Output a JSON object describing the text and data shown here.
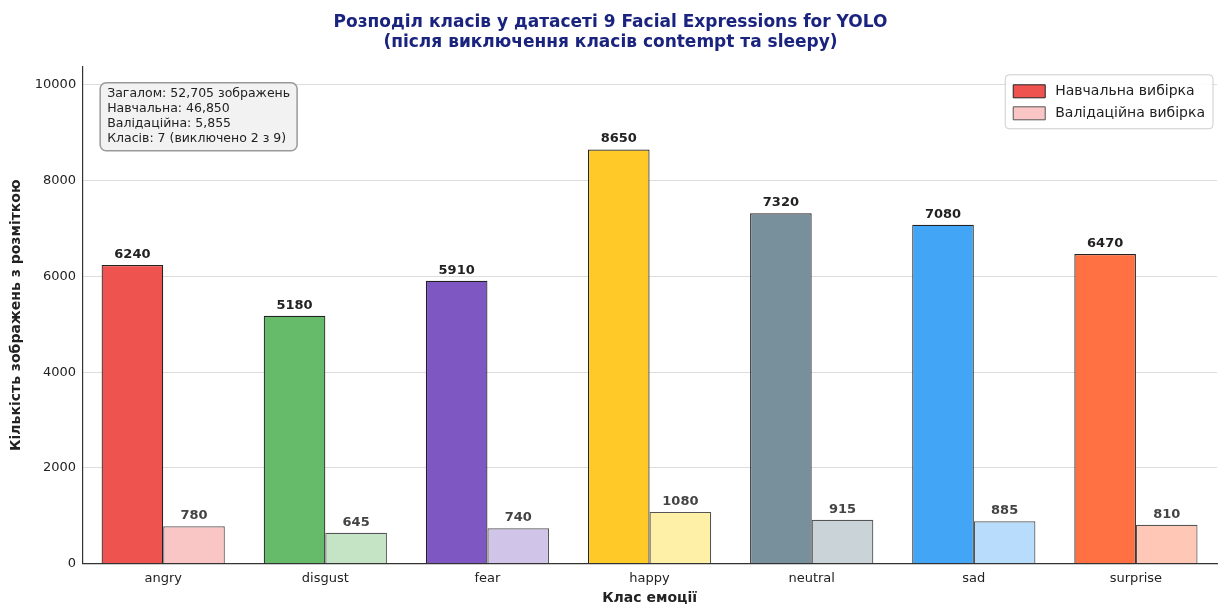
{
  "chart_data": {
    "type": "bar",
    "title": "Розподіл класів у датасеті 9 Facial Expressions for YOLO\n(після виключення класів contempt та sleepy)",
    "xlabel": "Клас емоції",
    "ylabel": "Кількість зображень з розміткою",
    "categories": [
      "angry",
      "disgust",
      "fear",
      "happy",
      "neutral",
      "sad",
      "surprise"
    ],
    "series": [
      {
        "name": "Навчальна вибірка",
        "color": "#ef5350",
        "colors": [
          "#ef5350",
          "#66bb6a",
          "#7e57c2",
          "#ffca28",
          "#78909c",
          "#42a5f5",
          "#ff7043"
        ],
        "values": [
          6240,
          5180,
          5910,
          8650,
          7320,
          7080,
          6470
        ]
      },
      {
        "name": "Валідаційна вибірка",
        "color": "#f9c6c5",
        "colors": [
          "#f9c6c5",
          "#c4e4c5",
          "#d0c4e8",
          "#fff0a8",
          "#c9d3d8",
          "#b8dcfb",
          "#ffc8b6"
        ],
        "values": [
          780,
          645,
          740,
          1080,
          915,
          885,
          810
        ]
      }
    ],
    "ylim": [
      0,
      10380
    ],
    "yticks": [
      0,
      2000,
      4000,
      6000,
      8000,
      10000
    ],
    "grid": "y",
    "legend": "top right",
    "data_labels": true,
    "annotations": [
      "Загалом: 52,705 зображень\nНавчальна: 46,850\nВалідаційна: 5,855\nКласів: 7 (виключено 2 з 9)"
    ]
  }
}
